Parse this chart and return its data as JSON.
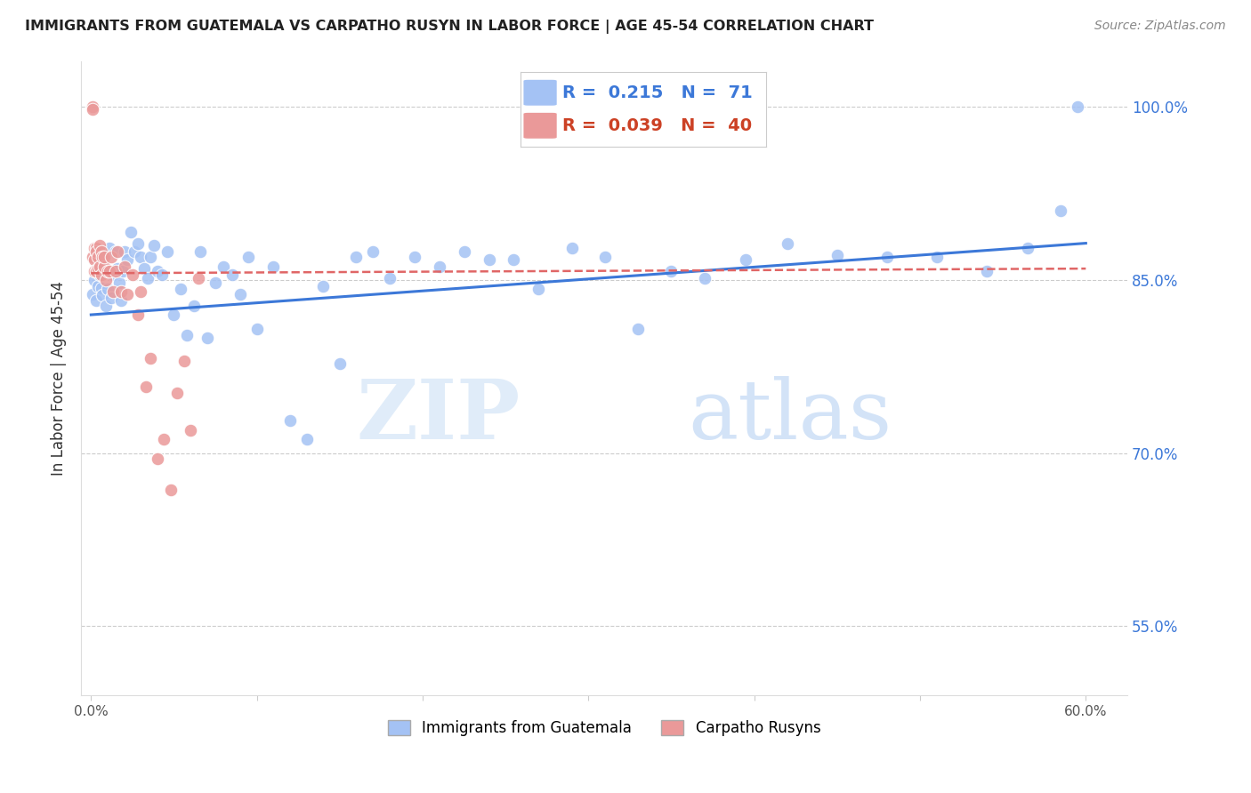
{
  "title": "IMMIGRANTS FROM GUATEMALA VS CARPATHO RUSYN IN LABOR FORCE | AGE 45-54 CORRELATION CHART",
  "source": "Source: ZipAtlas.com",
  "ylabel": "In Labor Force | Age 45-54",
  "yticks": [
    0.55,
    0.7,
    0.85,
    1.0
  ],
  "ytick_labels": [
    "55.0%",
    "70.0%",
    "85.0%",
    "100.0%"
  ],
  "legend_blue_r": "0.215",
  "legend_blue_n": "71",
  "legend_pink_r": "0.039",
  "legend_pink_n": "40",
  "legend1_label": "Immigrants from Guatemala",
  "legend2_label": "Carpatho Rusyns",
  "blue_color": "#a4c2f4",
  "pink_color": "#ea9999",
  "blue_line_color": "#3c78d8",
  "pink_line_color": "#e06666",
  "watermark_zip": "ZIP",
  "watermark_atlas": "atlas",
  "blue_points_x": [
    0.001,
    0.002,
    0.003,
    0.004,
    0.005,
    0.006,
    0.007,
    0.008,
    0.009,
    0.01,
    0.011,
    0.012,
    0.013,
    0.015,
    0.016,
    0.017,
    0.018,
    0.019,
    0.02,
    0.022,
    0.024,
    0.026,
    0.028,
    0.03,
    0.032,
    0.034,
    0.036,
    0.038,
    0.04,
    0.043,
    0.046,
    0.05,
    0.054,
    0.058,
    0.062,
    0.066,
    0.07,
    0.075,
    0.08,
    0.085,
    0.09,
    0.095,
    0.1,
    0.11,
    0.12,
    0.13,
    0.14,
    0.15,
    0.16,
    0.17,
    0.18,
    0.195,
    0.21,
    0.225,
    0.24,
    0.255,
    0.27,
    0.29,
    0.31,
    0.33,
    0.35,
    0.37,
    0.395,
    0.42,
    0.45,
    0.48,
    0.51,
    0.54,
    0.565,
    0.585,
    0.595
  ],
  "blue_points_y": [
    0.838,
    0.85,
    0.832,
    0.845,
    0.855,
    0.843,
    0.837,
    0.86,
    0.828,
    0.842,
    0.878,
    0.835,
    0.855,
    0.875,
    0.86,
    0.848,
    0.832,
    0.858,
    0.875,
    0.868,
    0.892,
    0.875,
    0.882,
    0.87,
    0.86,
    0.852,
    0.87,
    0.88,
    0.858,
    0.855,
    0.875,
    0.82,
    0.842,
    0.802,
    0.828,
    0.875,
    0.8,
    0.848,
    0.862,
    0.855,
    0.838,
    0.87,
    0.808,
    0.862,
    0.728,
    0.712,
    0.845,
    0.778,
    0.87,
    0.875,
    0.852,
    0.87,
    0.862,
    0.875,
    0.868,
    0.868,
    0.842,
    0.878,
    0.87,
    0.808,
    0.858,
    0.852,
    0.868,
    0.882,
    0.872,
    0.87,
    0.87,
    0.858,
    0.878,
    0.91,
    1.0
  ],
  "pink_points_x": [
    0.001,
    0.001,
    0.001,
    0.002,
    0.002,
    0.002,
    0.003,
    0.003,
    0.003,
    0.004,
    0.004,
    0.005,
    0.005,
    0.006,
    0.006,
    0.007,
    0.008,
    0.008,
    0.009,
    0.01,
    0.011,
    0.012,
    0.013,
    0.015,
    0.016,
    0.018,
    0.02,
    0.022,
    0.025,
    0.028,
    0.03,
    0.033,
    0.036,
    0.04,
    0.044,
    0.048,
    0.052,
    0.056,
    0.06,
    0.065
  ],
  "pink_points_y": [
    1.0,
    0.998,
    0.87,
    0.878,
    0.868,
    0.858,
    0.878,
    0.858,
    0.875,
    0.86,
    0.87,
    0.862,
    0.88,
    0.875,
    0.855,
    0.87,
    0.862,
    0.87,
    0.85,
    0.858,
    0.858,
    0.87,
    0.84,
    0.858,
    0.875,
    0.84,
    0.862,
    0.838,
    0.855,
    0.82,
    0.84,
    0.758,
    0.782,
    0.695,
    0.712,
    0.668,
    0.752,
    0.78,
    0.72,
    0.852
  ],
  "xmin": -0.006,
  "xmax": 0.625,
  "ymin": 0.49,
  "ymax": 1.04,
  "blue_trend_x0": 0.0,
  "blue_trend_x1": 0.6,
  "blue_trend_y0": 0.82,
  "blue_trend_y1": 0.882,
  "pink_trend_x0": 0.0,
  "pink_trend_x1": 0.6,
  "pink_trend_y0": 0.856,
  "pink_trend_y1": 0.86
}
